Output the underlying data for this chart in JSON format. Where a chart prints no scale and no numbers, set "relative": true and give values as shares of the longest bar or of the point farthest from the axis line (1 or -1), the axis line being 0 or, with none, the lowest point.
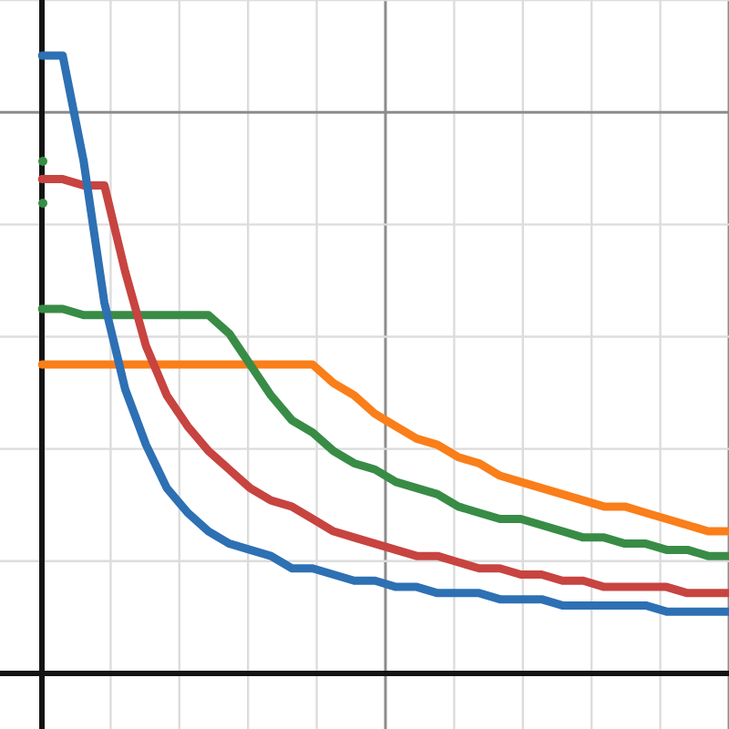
{
  "chart_data": {
    "type": "line",
    "relative": true,
    "grid": true,
    "legend": false,
    "marker": "none",
    "line_style": "solid",
    "categories": [
      null,
      null,
      null,
      null,
      null,
      null,
      null,
      null,
      null,
      null,
      null,
      null,
      null,
      null,
      null,
      null,
      null,
      null,
      null,
      null,
      null,
      null,
      null,
      null,
      null,
      null,
      null,
      null,
      null,
      null,
      null,
      null,
      null,
      null
    ],
    "series": [
      {
        "color": "#2d70b3",
        "values": [
          1.0,
          1.0,
          0.83,
          0.6,
          0.46,
          0.37,
          0.3,
          0.26,
          0.23,
          0.21,
          0.2,
          0.19,
          0.17,
          0.17,
          0.16,
          0.15,
          0.15,
          0.14,
          0.14,
          0.13,
          0.13,
          0.13,
          0.12,
          0.12,
          0.12,
          0.11,
          0.11,
          0.11,
          0.11,
          0.11,
          0.1,
          0.1,
          0.1,
          0.1
        ]
      },
      {
        "color": "#c74440",
        "values": [
          0.8,
          0.8,
          0.79,
          0.79,
          0.65,
          0.53,
          0.45,
          0.4,
          0.36,
          0.33,
          0.3,
          0.28,
          0.27,
          0.25,
          0.23,
          0.22,
          0.21,
          0.2,
          0.19,
          0.19,
          0.18,
          0.17,
          0.17,
          0.16,
          0.16,
          0.15,
          0.15,
          0.14,
          0.14,
          0.14,
          0.14,
          0.13,
          0.13,
          0.13
        ]
      },
      {
        "color": "#388c46",
        "values": [
          0.59,
          0.59,
          0.58,
          0.58,
          0.58,
          0.58,
          0.58,
          0.58,
          0.58,
          0.55,
          0.5,
          0.45,
          0.41,
          0.39,
          0.36,
          0.34,
          0.33,
          0.31,
          0.3,
          0.29,
          0.27,
          0.26,
          0.25,
          0.25,
          0.24,
          0.23,
          0.22,
          0.22,
          0.21,
          0.21,
          0.2,
          0.2,
          0.19,
          0.19
        ]
      },
      {
        "color": "#fa7e19",
        "values": [
          0.5,
          0.5,
          0.5,
          0.5,
          0.5,
          0.5,
          0.5,
          0.5,
          0.5,
          0.5,
          0.5,
          0.5,
          0.5,
          0.5,
          0.47,
          0.45,
          0.42,
          0.4,
          0.38,
          0.37,
          0.35,
          0.34,
          0.32,
          0.31,
          0.3,
          0.29,
          0.28,
          0.27,
          0.27,
          0.26,
          0.25,
          0.24,
          0.23,
          0.23
        ]
      }
    ]
  }
}
